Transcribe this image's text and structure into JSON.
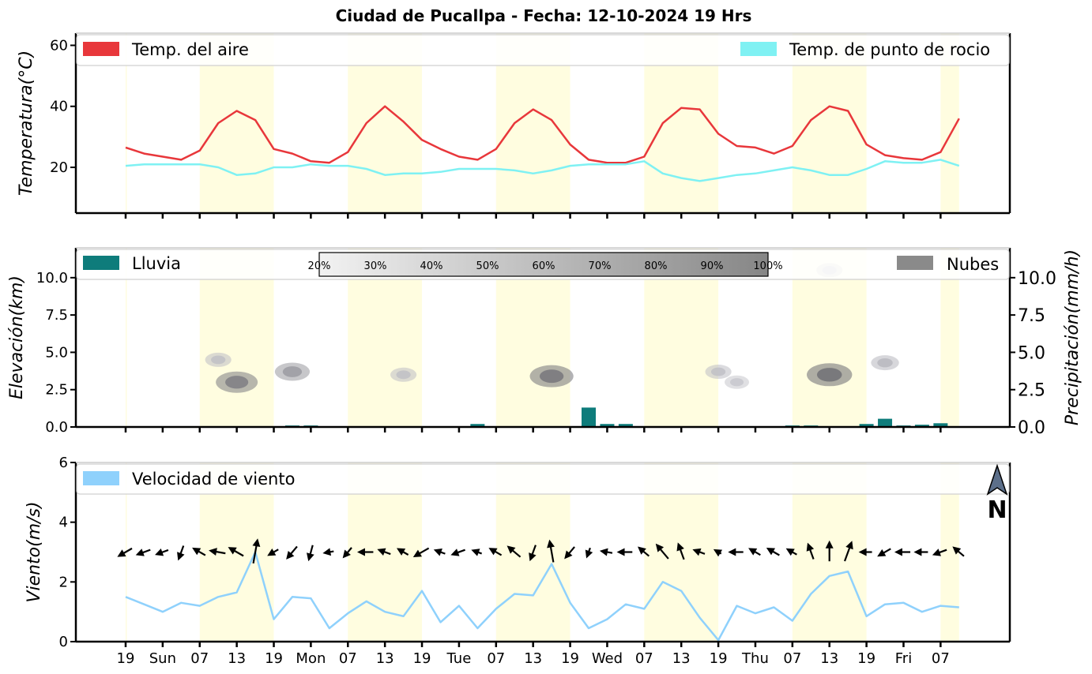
{
  "title": "Ciudad de Pucallpa   -   Fecha: 12-10-2024 19 Hrs",
  "chart_data": [
    {
      "type": "line",
      "panel": "temperature",
      "ylabel": "Temperatura(°C)",
      "ylim": [
        5,
        64
      ],
      "yticks": [
        20,
        40,
        60
      ],
      "series": [
        {
          "name": "Temp. del aire",
          "color": "#e8373b",
          "values": [
            26.5,
            24.5,
            23.5,
            22.5,
            25.5,
            34.5,
            38.5,
            35.5,
            26,
            24.5,
            22,
            21.5,
            25,
            34.5,
            40,
            35,
            29,
            26,
            23.5,
            22.5,
            26,
            34.5,
            39,
            35.5,
            27.5,
            22.5,
            21.5,
            21.5,
            23.5,
            34.5,
            39.5,
            39,
            31,
            27,
            26.5,
            24.5,
            27,
            35.5,
            40,
            38.5,
            27.5,
            24,
            23,
            22.5,
            25,
            36
          ]
        },
        {
          "name": "Temp. de punto de rocio",
          "color": "#7ff1f3",
          "values": [
            20.5,
            21,
            21,
            21,
            21,
            20,
            17.5,
            18,
            20,
            20,
            21,
            20.5,
            20.5,
            19.5,
            17.5,
            18,
            18,
            18.5,
            19.5,
            19.5,
            19.5,
            19,
            18,
            19,
            20.5,
            21,
            21,
            21,
            22,
            18,
            16.5,
            15.5,
            16.5,
            17.5,
            18,
            19,
            20,
            19,
            17.5,
            17.5,
            19.5,
            22,
            21.5,
            21.5,
            22.5,
            20.5
          ]
        }
      ]
    },
    {
      "type": "bar",
      "panel": "rain_clouds",
      "ylabel_left": "Elevación(km)",
      "ylabel_right": "Precipitación(mm/h)",
      "ylim": [
        0,
        12
      ],
      "yticks": [
        0.0,
        2.5,
        5.0,
        7.5,
        10.0
      ],
      "series": [
        {
          "name": "Lluvia",
          "color": "#0e7c7b",
          "values": [
            0,
            0,
            0,
            0,
            0,
            0,
            0,
            0,
            0,
            0.1,
            0.1,
            0.05,
            0,
            0,
            0,
            0,
            0,
            0,
            0,
            0.2,
            0,
            0,
            0,
            0,
            0.05,
            1.3,
            0.2,
            0.2,
            0,
            0,
            0,
            0,
            0,
            0.05,
            0,
            0,
            0.1,
            0.1,
            0,
            0,
            0.2,
            0.55,
            0.1,
            0.15,
            0.25,
            0
          ]
        },
        {
          "name": "Nubes",
          "color": "#8a8a8a"
        }
      ],
      "clouds": [
        {
          "step": 5,
          "elev": 4.5,
          "cover": 0.3
        },
        {
          "step": 6,
          "elev": 3.0,
          "cover": 0.75
        },
        {
          "step": 9,
          "elev": 3.7,
          "cover": 0.55
        },
        {
          "step": 15,
          "elev": 3.5,
          "cover": 0.3
        },
        {
          "step": 23,
          "elev": 3.4,
          "cover": 0.8
        },
        {
          "step": 32,
          "elev": 3.7,
          "cover": 0.3
        },
        {
          "step": 33,
          "elev": 3.0,
          "cover": 0.25
        },
        {
          "step": 38,
          "elev": 3.5,
          "cover": 0.85
        },
        {
          "step": 38,
          "elev": 10.5,
          "cover": 0.3
        },
        {
          "step": 41,
          "elev": 4.3,
          "cover": 0.35
        }
      ],
      "colorbar_labels": [
        "20%",
        "30%",
        "40%",
        "50%",
        "60%",
        "70%",
        "80%",
        "90%",
        "100%"
      ]
    },
    {
      "type": "line",
      "panel": "wind",
      "ylabel": "Viento(m/s)",
      "ylim": [
        0,
        6
      ],
      "yticks": [
        0,
        2,
        4,
        6
      ],
      "series": [
        {
          "name": "Velocidad de viento",
          "color": "#8fd1fc",
          "values": [
            1.5,
            1.25,
            1.0,
            1.3,
            1.2,
            1.5,
            1.65,
            3.0,
            0.75,
            1.5,
            1.45,
            0.45,
            0.95,
            1.35,
            1.0,
            0.85,
            1.7,
            0.65,
            1.2,
            0.45,
            1.1,
            1.6,
            1.55,
            2.6,
            1.3,
            0.45,
            0.75,
            1.25,
            1.1,
            2.0,
            1.7,
            0.8,
            0.05,
            1.2,
            0.95,
            1.15,
            0.7,
            1.6,
            2.2,
            2.35,
            0.85,
            1.25,
            1.3,
            1.0,
            1.2,
            1.15
          ]
        }
      ],
      "wind_dir_deg": [
        240,
        250,
        250,
        200,
        300,
        280,
        300,
        10,
        240,
        220,
        195,
        260,
        220,
        270,
        290,
        300,
        240,
        290,
        250,
        290,
        300,
        310,
        200,
        350,
        220,
        200,
        280,
        270,
        310,
        320,
        340,
        290,
        300,
        270,
        300,
        300,
        300,
        340,
        0,
        20,
        270,
        240,
        270,
        270,
        250,
        310
      ],
      "arrow_y": 3.0,
      "north_label": "N"
    }
  ],
  "x_tick_labels": [
    "19",
    "Sun",
    "07",
    "13",
    "19",
    "Mon",
    "07",
    "13",
    "19",
    "Tue",
    "07",
    "13",
    "19",
    "Wed",
    "07",
    "13",
    "19",
    "Thu",
    "07",
    "13",
    "19",
    "Fri",
    "07"
  ],
  "day_bands": [
    [
      0,
      0
    ],
    [
      4,
      8
    ],
    [
      12,
      16
    ],
    [
      20,
      24
    ],
    [
      28,
      32
    ],
    [
      36,
      40
    ],
    [
      44,
      45
    ]
  ]
}
